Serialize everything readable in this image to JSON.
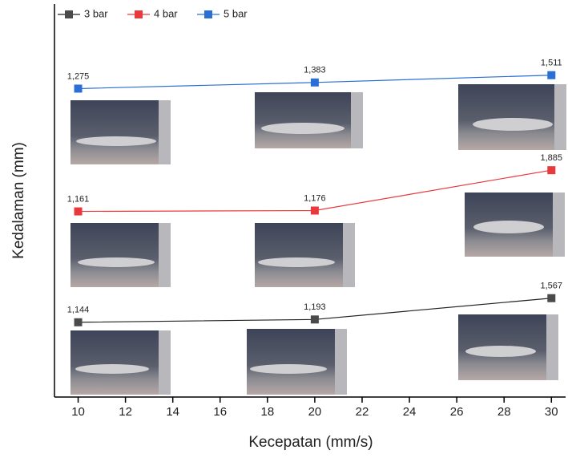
{
  "chart_data": {
    "type": "line",
    "x_label": "Kecepatan (mm/s)",
    "y_label": "Kedalaman (mm)",
    "x": [
      10,
      20,
      30
    ],
    "xlim": [
      9,
      30.6
    ],
    "xticks": [
      10,
      12,
      14,
      16,
      18,
      20,
      22,
      24,
      26,
      28,
      30
    ],
    "legend": "top-left",
    "series": [
      {
        "name": "3 bar",
        "color": "#4a4a4a",
        "line_color": "#222222",
        "values": [
          1.144,
          1.193,
          1.567
        ],
        "value_labels": [
          "1,144",
          "1,193",
          "1,567"
        ]
      },
      {
        "name": "4 bar",
        "color": "#e8393d",
        "line_color": "#e8393d",
        "values": [
          1.161,
          1.176,
          1.885
        ],
        "value_labels": [
          "1,161",
          "1,176",
          "1,885"
        ]
      },
      {
        "name": "5 bar",
        "color": "#2a6fd6",
        "line_color": "#2a6fd6",
        "values": [
          1.275,
          1.383,
          1.511
        ],
        "value_labels": [
          "1,275",
          "1,383",
          "1,511"
        ]
      }
    ]
  }
}
